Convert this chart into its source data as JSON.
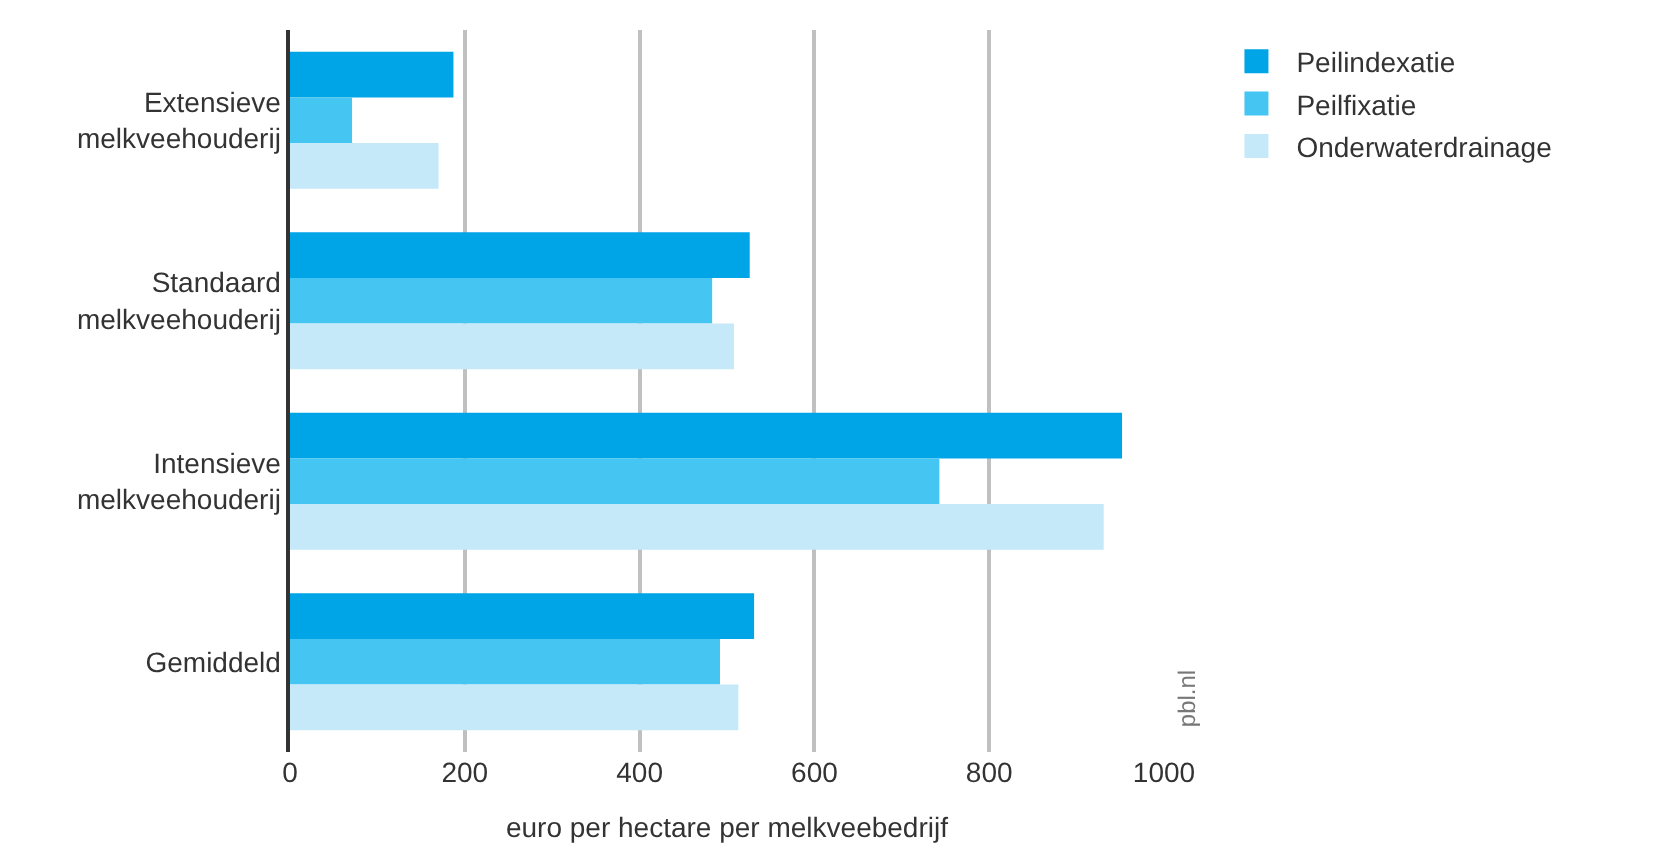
{
  "chart_data": {
    "type": "bar",
    "orientation": "horizontal",
    "xlabel": "euro per hectare per melkveebedrijf",
    "categories": [
      "Extensieve\nmelkveehouderij",
      "Standaard\nmelkveehouderij",
      "Intensieve\nmelkveehouderij",
      "Gemiddeld"
    ],
    "series": [
      {
        "name": "Peilindexatie",
        "color": "#00a5e8",
        "values": [
          187,
          526,
          952,
          531
        ]
      },
      {
        "name": "Peilfixatie",
        "color": "#45c6f2",
        "values": [
          71,
          483,
          743,
          492
        ]
      },
      {
        "name": "Onderwaterdrainage",
        "color": "#c5e9f8",
        "values": [
          170,
          508,
          931,
          513
        ]
      }
    ],
    "xlim": [
      0,
      1000
    ],
    "xticks": [
      0,
      200,
      400,
      600,
      800,
      1000
    ],
    "grid": "x",
    "legend": "top right",
    "annotations": [
      "pbl.nl"
    ]
  }
}
